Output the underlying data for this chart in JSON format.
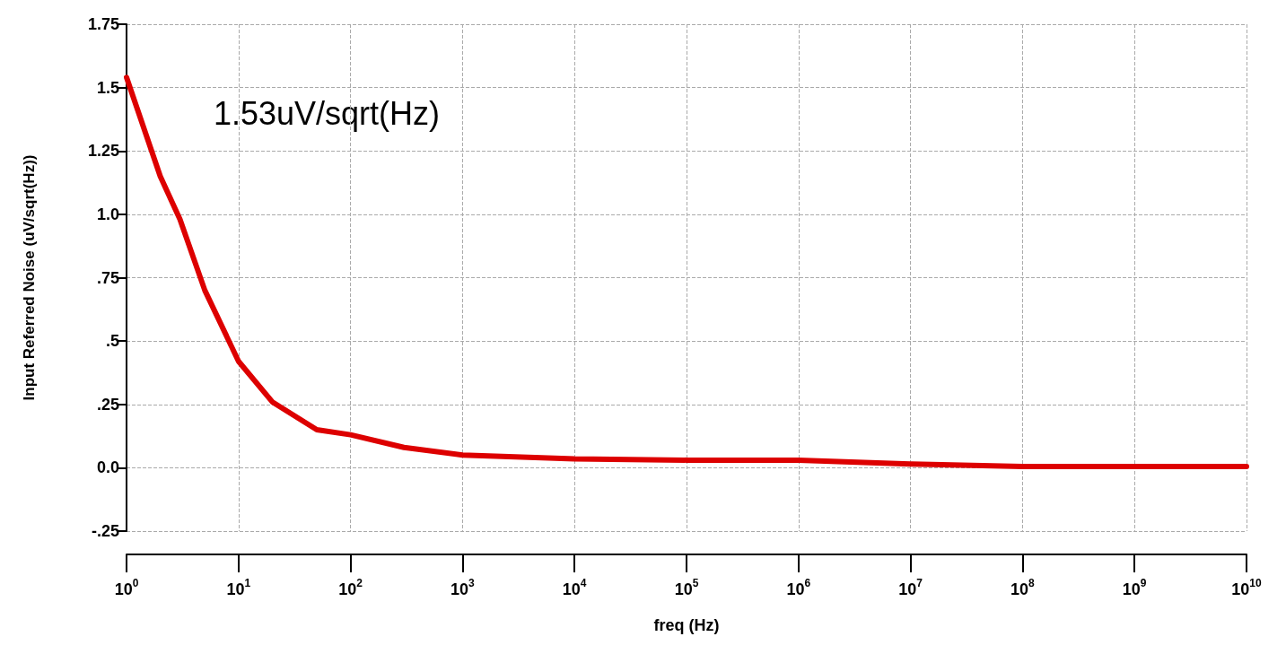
{
  "chart_data": {
    "type": "line",
    "xlabel": "freq (Hz)",
    "ylabel": "Input Referred Noise (uV/sqrt(Hz))",
    "annotations": [
      "1.53uV/sqrt(Hz)"
    ],
    "log": "x",
    "grid": true,
    "marker": "none",
    "line_style": "solid",
    "xlim": [
      1,
      10000000000
    ],
    "ylim": [
      -0.25,
      1.75
    ],
    "xticks": [
      {
        "value": 1,
        "label": "10$^{0}$"
      },
      {
        "value": 10,
        "label": "10$^{1}$"
      },
      {
        "value": 100,
        "label": "10$^{2}$"
      },
      {
        "value": 1000,
        "label": "10$^{3}$"
      },
      {
        "value": 10000,
        "label": "10$^{4}$"
      },
      {
        "value": 100000,
        "label": "10$^{5}$"
      },
      {
        "value": 1000000,
        "label": "10$^{6}$"
      },
      {
        "value": 10000000,
        "label": "10$^{7}$"
      },
      {
        "value": 100000000,
        "label": "10$^{8}$"
      },
      {
        "value": 1000000000,
        "label": "10$^{9}$"
      },
      {
        "value": 10000000000,
        "label": "10$^{10}$"
      }
    ],
    "yticks": [
      {
        "value": -0.25,
        "label": "-.25"
      },
      {
        "value": 0,
        "label": "0.0"
      },
      {
        "value": 0.25,
        "label": ".25"
      },
      {
        "value": 0.5,
        "label": ".5"
      },
      {
        "value": 0.75,
        "label": ".75"
      },
      {
        "value": 1,
        "label": "1.0"
      },
      1.25,
      1.5,
      1.75
    ],
    "x": [
      1,
      2,
      3,
      5,
      10,
      20,
      50,
      100,
      300,
      1000,
      10000,
      100000,
      1000000,
      10000000,
      100000000,
      10000000000
    ],
    "series": [
      {
        "color": "#dd0000",
        "values": [
          1.54,
          1.15,
          0.98,
          0.7,
          0.42,
          0.26,
          0.15,
          0.13,
          0.08,
          0.05,
          0.035,
          0.03,
          0.03,
          0.015,
          0.005,
          0.005
        ]
      }
    ]
  }
}
